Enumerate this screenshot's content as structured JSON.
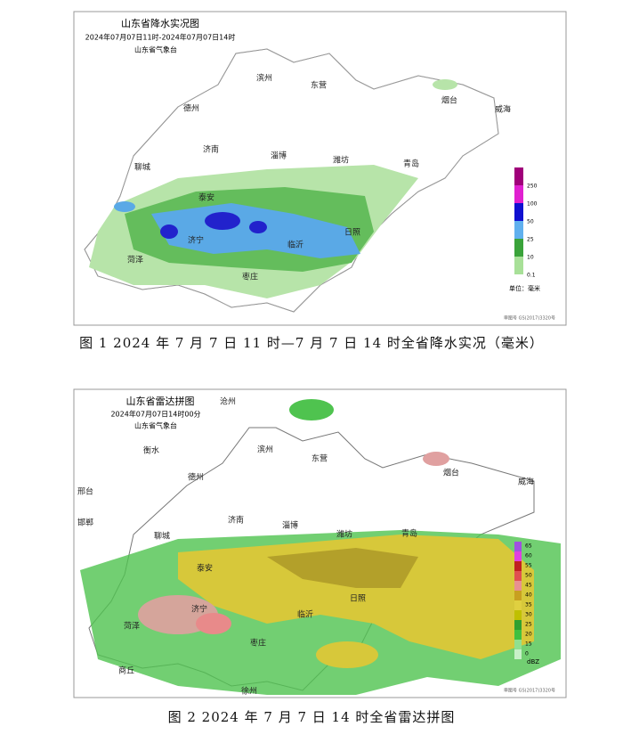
{
  "figure1": {
    "title": "山东省降水实况图",
    "subtitle": "2024年07月07日11时-2024年07月07日14时",
    "agency": "山东省气象台",
    "cities": [
      "滨州",
      "东营",
      "烟台",
      "威海",
      "德州",
      "济南",
      "淄博",
      "潍坊",
      "青岛",
      "聊城",
      "泰安",
      "日照",
      "济宁",
      "临沂",
      "菏泽",
      "枣庄"
    ],
    "legend": {
      "labels": [
        "250",
        "100",
        "50",
        "25",
        "10",
        "0.1"
      ],
      "unit": "单位：毫米"
    },
    "footnote": "审图号 GS(2017)3320号",
    "caption": "图 1 2024 年 7 月 7 日 11 时—7 月 7 日 14 时全省降水实况（毫米）"
  },
  "figure2": {
    "title": "山东省雷达拼图",
    "subtitle": "2024年07月07日14时00分",
    "agency": "山东省气象台",
    "cities": [
      "沧州",
      "衡水",
      "滨州",
      "东营",
      "德州",
      "邢台",
      "烟台",
      "威海",
      "济南",
      "淄博",
      "潍坊",
      "青岛",
      "邯郸",
      "聊城",
      "泰安",
      "济宁",
      "日照",
      "临沂",
      "菏泽",
      "枣庄",
      "商丘",
      "徐州"
    ],
    "legend": {
      "labels": [
        "65",
        "60",
        "55",
        "50",
        "45",
        "40",
        "35",
        "30",
        "25",
        "20",
        "15",
        "0"
      ],
      "unit": "dBZ"
    },
    "footnote": "审图号 GS(2017)3320号",
    "caption": "图 2 2024 年 7 月 7 日 14 时全省雷达拼图"
  }
}
